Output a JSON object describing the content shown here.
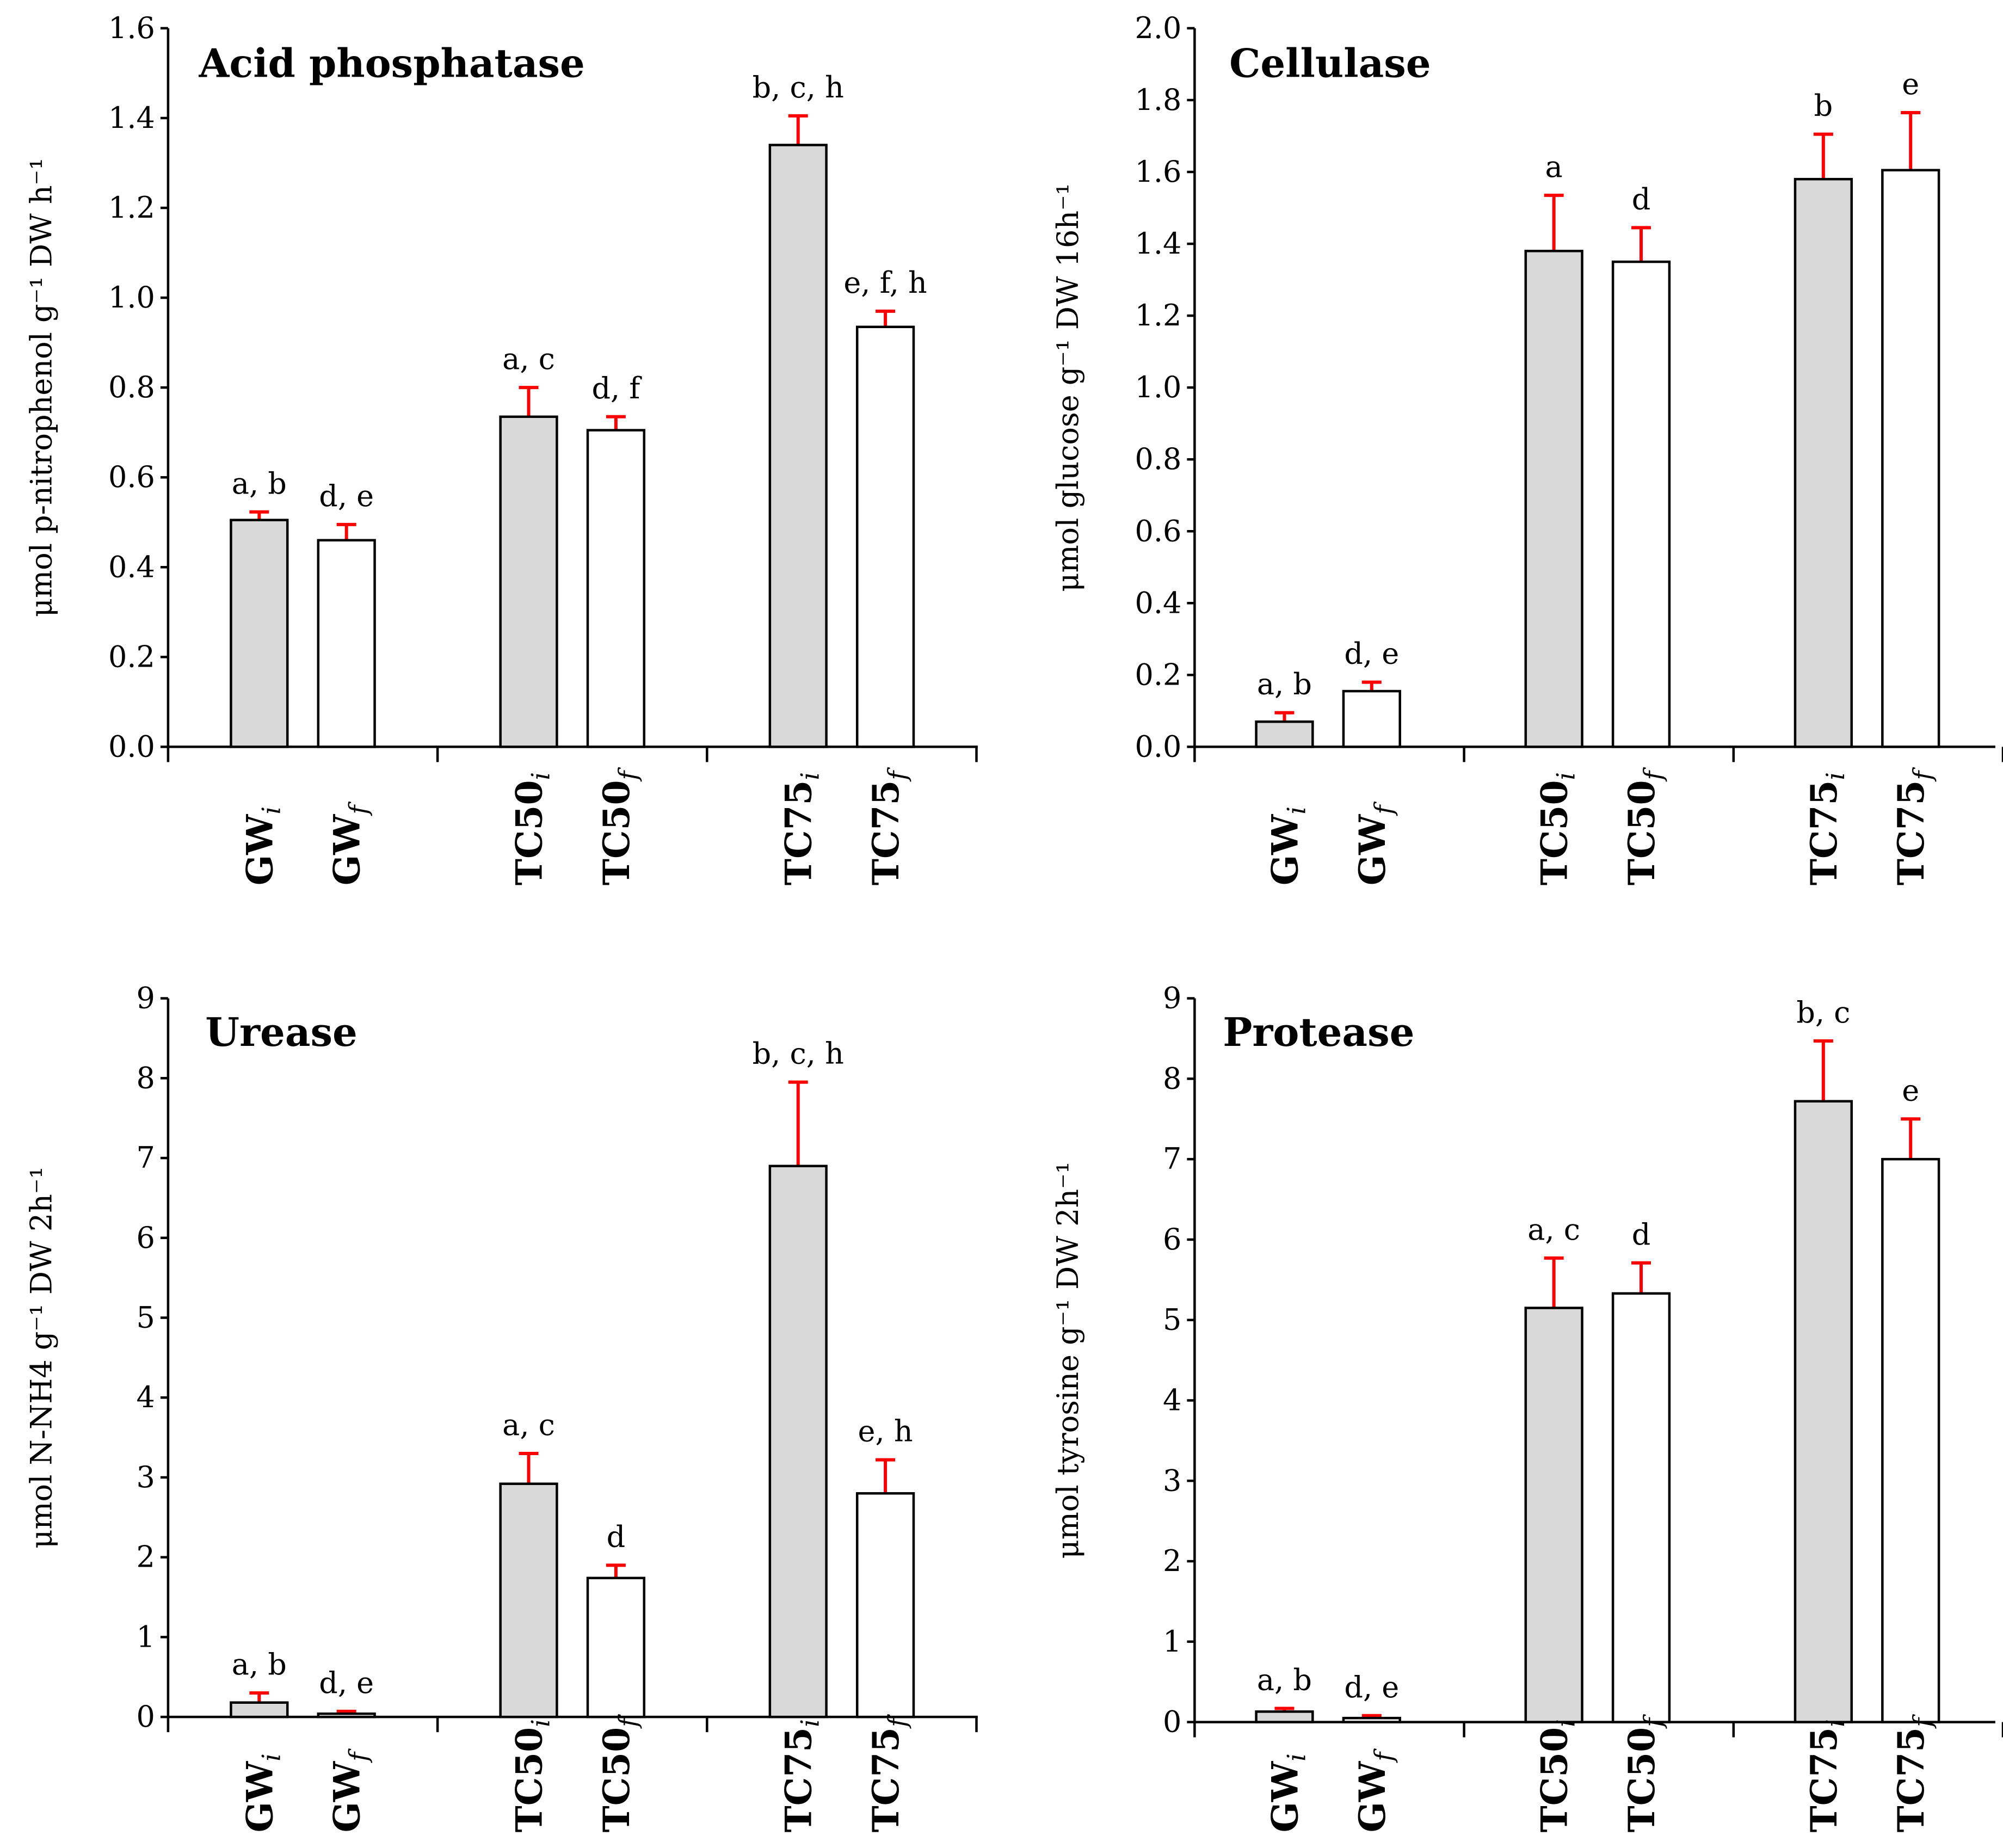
{
  "chart_data": [
    {
      "type": "bar",
      "title": "Acid phosphatase",
      "ylabel": "μmol p-nitrophenol g⁻¹ DW h⁻¹",
      "ylim": [
        0,
        1.6
      ],
      "yticks": [
        "0.0",
        "0.2",
        "0.4",
        "0.6",
        "0.8",
        "1.0",
        "1.2",
        "1.4",
        "1.6"
      ],
      "categories": [
        {
          "base": "GW",
          "sub": "i",
          "group": 0,
          "fill": "#d9d9d9",
          "value": 0.505,
          "error": 0.018,
          "label": "a, b"
        },
        {
          "base": "GW",
          "sub": "f",
          "group": 0,
          "fill": "#ffffff",
          "value": 0.46,
          "error": 0.035,
          "label": "d, e"
        },
        {
          "base": "TC50",
          "sub": "i",
          "group": 1,
          "fill": "#d9d9d9",
          "value": 0.735,
          "error": 0.065,
          "label": "a, c"
        },
        {
          "base": "TC50",
          "sub": "f",
          "group": 1,
          "fill": "#ffffff",
          "value": 0.705,
          "error": 0.03,
          "label": "d, f"
        },
        {
          "base": "TC75",
          "sub": "i",
          "group": 2,
          "fill": "#d9d9d9",
          "value": 1.34,
          "error": 0.065,
          "label": "b, c, h"
        },
        {
          "base": "TC75",
          "sub": "f",
          "group": 2,
          "fill": "#ffffff",
          "value": 0.935,
          "error": 0.035,
          "label": "e, f, h"
        }
      ]
    },
    {
      "type": "bar",
      "title": "Cellulase",
      "ylabel": "μmol glucose g⁻¹ DW 16h⁻¹",
      "ylim": [
        0,
        2.0
      ],
      "yticks": [
        "0.0",
        "0.2",
        "0.4",
        "0.6",
        "0.8",
        "1.0",
        "1.2",
        "1.4",
        "1.6",
        "1.8",
        "2.0"
      ],
      "categories": [
        {
          "base": "GW",
          "sub": "i",
          "group": 0,
          "fill": "#d9d9d9",
          "value": 0.07,
          "error": 0.025,
          "label": "a, b"
        },
        {
          "base": "GW",
          "sub": "f",
          "group": 0,
          "fill": "#ffffff",
          "value": 0.155,
          "error": 0.025,
          "label": "d, e"
        },
        {
          "base": "TC50",
          "sub": "i",
          "group": 1,
          "fill": "#d9d9d9",
          "value": 1.38,
          "error": 0.155,
          "label": "a"
        },
        {
          "base": "TC50",
          "sub": "f",
          "group": 1,
          "fill": "#ffffff",
          "value": 1.35,
          "error": 0.095,
          "label": "d"
        },
        {
          "base": "TC75",
          "sub": "i",
          "group": 2,
          "fill": "#d9d9d9",
          "value": 1.58,
          "error": 0.125,
          "label": "b"
        },
        {
          "base": "TC75",
          "sub": "f",
          "group": 2,
          "fill": "#ffffff",
          "value": 1.605,
          "error": 0.16,
          "label": "e"
        }
      ]
    },
    {
      "type": "bar",
      "title": "Urease",
      "ylabel": "μmol N-NH4 g⁻¹ DW 2h⁻¹",
      "ylim": [
        0,
        9
      ],
      "yticks": [
        "0",
        "1",
        "2",
        "3",
        "4",
        "5",
        "6",
        "7",
        "8",
        "9"
      ],
      "categories": [
        {
          "base": "GW",
          "sub": "i",
          "group": 0,
          "fill": "#d9d9d9",
          "value": 0.18,
          "error": 0.12,
          "label": "a, b"
        },
        {
          "base": "GW",
          "sub": "f",
          "group": 0,
          "fill": "#ffffff",
          "value": 0.04,
          "error": 0.03,
          "label": "d, e"
        },
        {
          "base": "TC50",
          "sub": "i",
          "group": 1,
          "fill": "#d9d9d9",
          "value": 2.92,
          "error": 0.38,
          "label": "a, c"
        },
        {
          "base": "TC50",
          "sub": "f",
          "group": 1,
          "fill": "#ffffff",
          "value": 1.74,
          "error": 0.16,
          "label": "d"
        },
        {
          "base": "TC75",
          "sub": "i",
          "group": 2,
          "fill": "#d9d9d9",
          "value": 6.9,
          "error": 1.05,
          "label": "b, c, h"
        },
        {
          "base": "TC75",
          "sub": "f",
          "group": 2,
          "fill": "#ffffff",
          "value": 2.8,
          "error": 0.42,
          "label": "e, h"
        }
      ]
    },
    {
      "type": "bar",
      "title": "Protease",
      "ylabel": "μmol tyrosine g⁻¹ DW 2h⁻¹",
      "ylim": [
        0,
        9
      ],
      "yticks": [
        "0",
        "1",
        "2",
        "3",
        "4",
        "5",
        "6",
        "7",
        "8",
        "9"
      ],
      "categories": [
        {
          "base": "GW",
          "sub": "i",
          "group": 0,
          "fill": "#d9d9d9",
          "value": 0.13,
          "error": 0.04,
          "label": "a, b"
        },
        {
          "base": "GW",
          "sub": "f",
          "group": 0,
          "fill": "#ffffff",
          "value": 0.05,
          "error": 0.03,
          "label": "d, e"
        },
        {
          "base": "TC50",
          "sub": "i",
          "group": 1,
          "fill": "#d9d9d9",
          "value": 5.15,
          "error": 0.62,
          "label": "a, c"
        },
        {
          "base": "TC50",
          "sub": "f",
          "group": 1,
          "fill": "#ffffff",
          "value": 5.33,
          "error": 0.38,
          "label": "d"
        },
        {
          "base": "TC75",
          "sub": "i",
          "group": 2,
          "fill": "#d9d9d9",
          "value": 7.72,
          "error": 0.75,
          "label": "b, c"
        },
        {
          "base": "TC75",
          "sub": "f",
          "group": 2,
          "fill": "#ffffff",
          "value": 7.0,
          "error": 0.5,
          "label": "e"
        }
      ]
    }
  ],
  "colors": {
    "initial_fill": "#d9d9d9",
    "final_fill": "#ffffff",
    "error_bar": "#ff0000",
    "axis": "#000000"
  }
}
